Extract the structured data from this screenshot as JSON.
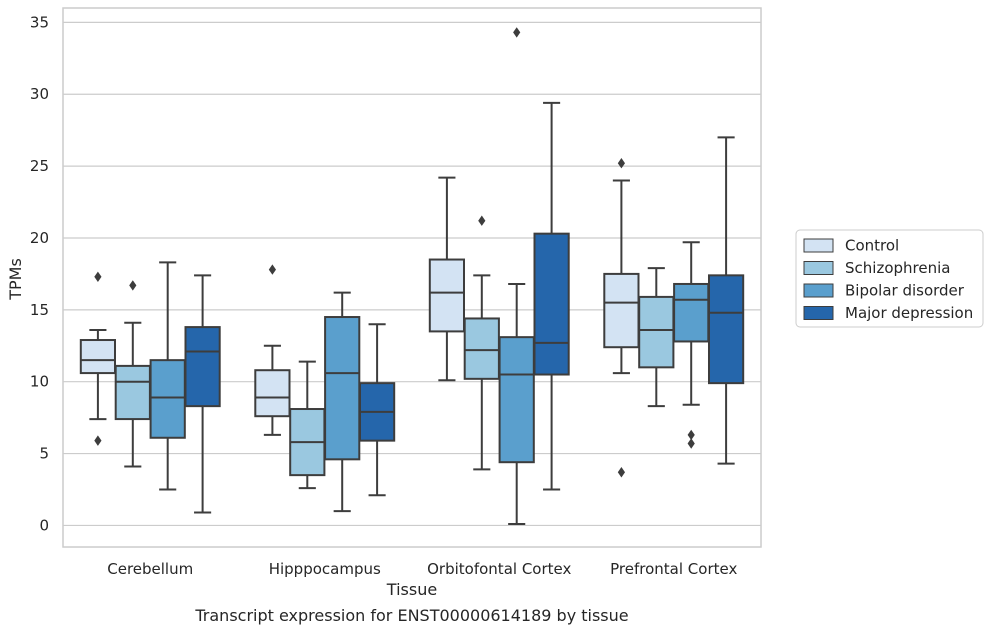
{
  "chart_data": {
    "type": "box",
    "xlabel": "Tissue",
    "ylabel": "TPMs",
    "caption": "Transcript expression for ENST00000614189 by tissue",
    "ylim": [
      -1.5,
      36
    ],
    "yticks": [
      0,
      5,
      10,
      15,
      20,
      25,
      30,
      35
    ],
    "grid": true,
    "legend_position": "right",
    "categories": [
      "Cerebellum",
      "Hipppocampus",
      "Orbitofontal Cortex",
      "Prefrontal Cortex"
    ],
    "series": [
      {
        "name": "Control",
        "color": "#d3e3f3",
        "boxes": [
          {
            "whislo": 7.4,
            "q1": 10.6,
            "med": 11.5,
            "q3": 12.9,
            "whishi": 13.6,
            "fliers": [
              17.3,
              5.9
            ]
          },
          {
            "whislo": 6.3,
            "q1": 7.6,
            "med": 8.9,
            "q3": 10.8,
            "whishi": 12.5,
            "fliers": [
              17.8
            ]
          },
          {
            "whislo": 10.1,
            "q1": 13.5,
            "med": 16.2,
            "q3": 18.5,
            "whishi": 24.2,
            "fliers": []
          },
          {
            "whislo": 10.6,
            "q1": 12.4,
            "med": 15.5,
            "q3": 17.5,
            "whishi": 24.0,
            "fliers": [
              25.2,
              3.7
            ]
          }
        ]
      },
      {
        "name": "Schizophrenia",
        "color": "#9ac8e0",
        "boxes": [
          {
            "whislo": 4.1,
            "q1": 7.4,
            "med": 10.0,
            "q3": 11.1,
            "whishi": 14.1,
            "fliers": [
              16.7
            ]
          },
          {
            "whislo": 2.6,
            "q1": 3.5,
            "med": 5.8,
            "q3": 8.1,
            "whishi": 11.4,
            "fliers": []
          },
          {
            "whislo": 3.9,
            "q1": 10.2,
            "med": 12.2,
            "q3": 14.4,
            "whishi": 17.4,
            "fliers": [
              21.2
            ]
          },
          {
            "whislo": 8.3,
            "q1": 11.0,
            "med": 13.6,
            "q3": 15.9,
            "whishi": 17.9,
            "fliers": []
          }
        ]
      },
      {
        "name": "Bipolar disorder",
        "color": "#5a9fcd",
        "boxes": [
          {
            "whislo": 2.5,
            "q1": 6.1,
            "med": 8.9,
            "q3": 11.5,
            "whishi": 18.3,
            "fliers": []
          },
          {
            "whislo": 1.0,
            "q1": 4.6,
            "med": 10.6,
            "q3": 14.5,
            "whishi": 16.2,
            "fliers": []
          },
          {
            "whislo": 0.1,
            "q1": 4.4,
            "med": 10.5,
            "q3": 13.1,
            "whishi": 16.8,
            "fliers": [
              34.3
            ]
          },
          {
            "whislo": 8.4,
            "q1": 12.8,
            "med": 15.7,
            "q3": 16.8,
            "whishi": 19.7,
            "fliers": [
              6.3,
              5.7
            ]
          }
        ]
      },
      {
        "name": "Major depression",
        "color": "#2566ab",
        "boxes": [
          {
            "whislo": 0.9,
            "q1": 8.3,
            "med": 12.1,
            "q3": 13.8,
            "whishi": 17.4,
            "fliers": []
          },
          {
            "whislo": 2.1,
            "q1": 5.9,
            "med": 7.9,
            "q3": 9.9,
            "whishi": 14.0,
            "fliers": []
          },
          {
            "whislo": 2.5,
            "q1": 10.5,
            "med": 12.7,
            "q3": 20.3,
            "whishi": 29.4,
            "fliers": []
          },
          {
            "whislo": 4.3,
            "q1": 9.9,
            "med": 14.8,
            "q3": 17.4,
            "whishi": 27.0,
            "fliers": []
          }
        ]
      }
    ]
  }
}
